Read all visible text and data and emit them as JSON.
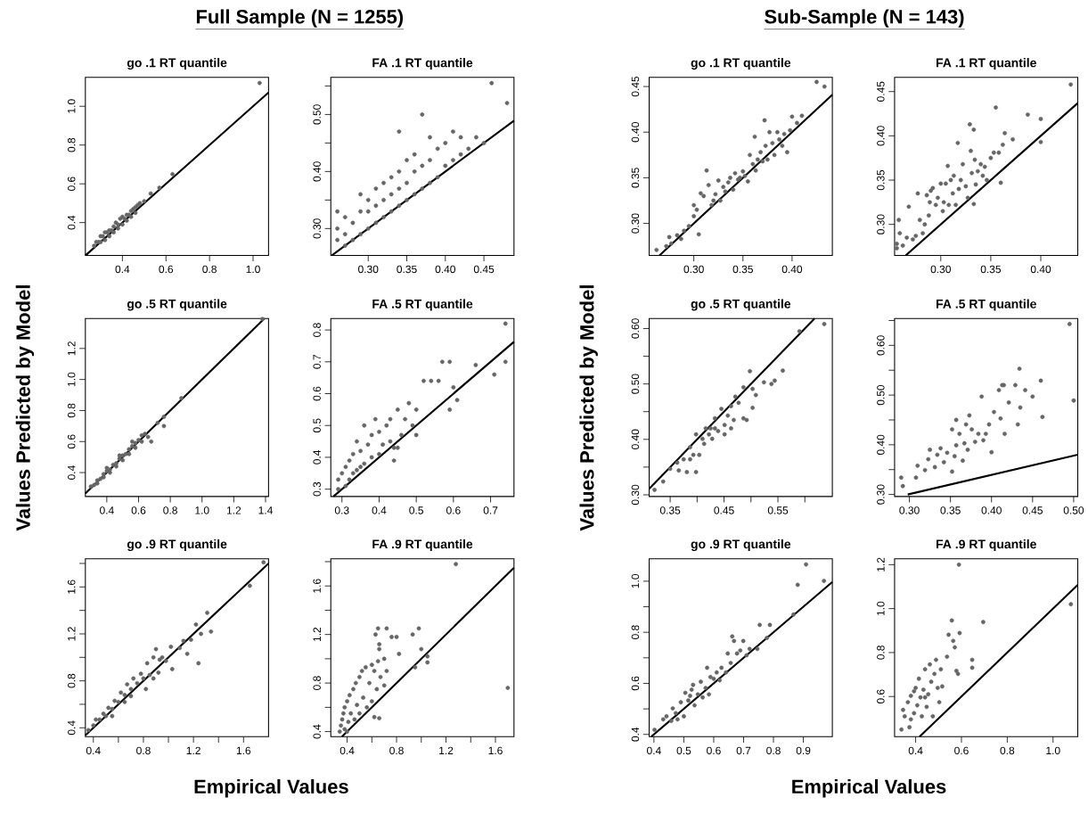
{
  "chart_data": [
    {
      "type": "other",
      "title": "Full Sample (N = 1255)",
      "xlabel": "Empirical Values",
      "ylabel": "Values Predicted by Model"
    },
    {
      "type": "scatter",
      "title": "go .1 RT quantile",
      "xlim": [
        0.23,
        1.071
      ],
      "ylim": [
        0.231,
        1.149
      ],
      "xticks": [
        0.4,
        0.6,
        0.8,
        {
          "value": 1.0,
          "label": "1.0"
        }
      ],
      "yticks": [
        0.4,
        0.6,
        0.8,
        {
          "value": 1.0,
          "label": "1.0"
        }
      ],
      "series": [
        {
          "marker": "circle",
          "color": "#666666",
          "x": [
            0.27,
            0.28,
            0.29,
            0.3,
            0.31,
            0.32,
            0.33,
            0.34,
            0.35,
            0.36,
            0.37,
            0.38,
            0.39,
            0.4,
            0.41,
            0.42,
            0.43,
            0.44,
            0.45,
            0.46,
            0.47,
            0.48,
            0.5,
            0.3,
            0.32,
            0.34,
            0.36,
            0.38,
            0.4,
            0.42,
            0.44,
            0.46,
            0.53,
            0.57,
            0.63,
            1.03
          ],
          "values": [
            0.28,
            0.3,
            0.3,
            0.33,
            0.33,
            0.35,
            0.35,
            0.36,
            0.36,
            0.38,
            0.4,
            0.39,
            0.42,
            0.43,
            0.42,
            0.44,
            0.44,
            0.46,
            0.47,
            0.48,
            0.49,
            0.5,
            0.51,
            0.3,
            0.31,
            0.33,
            0.35,
            0.37,
            0.39,
            0.41,
            0.43,
            0.45,
            0.55,
            0.58,
            0.65,
            1.12
          ]
        },
        {
          "type": "line",
          "marker": "none",
          "color": "#000000",
          "x": [
            0.231,
            1.071
          ],
          "values": [
            0.231,
            1.071
          ]
        }
      ]
    },
    {
      "type": "scatter",
      "title": "FA .1 RT quantile",
      "xlim": [
        0.2515,
        0.489
      ],
      "ylim": [
        0.253,
        0.565
      ],
      "xticks": [
        {
          "value": 0.3,
          "label": "0.30"
        },
        0.35,
        {
          "value": 0.4,
          "label": "0.40"
        },
        0.45
      ],
      "yticks": [
        {
          "value": 0.3,
          "label": "0.30"
        },
        {
          "value": 0.35,
          "label": null
        },
        {
          "value": 0.4,
          "label": "0.40"
        },
        {
          "value": 0.45,
          "label": null
        },
        {
          "value": 0.5,
          "label": "0.50"
        },
        {
          "value": 0.55,
          "label": null
        }
      ],
      "series": [
        {
          "marker": "circle",
          "color": "#666666",
          "x": [
            0.26,
            0.26,
            0.27,
            0.27,
            0.27,
            0.28,
            0.28,
            0.29,
            0.29,
            0.29,
            0.3,
            0.3,
            0.3,
            0.31,
            0.31,
            0.31,
            0.32,
            0.32,
            0.32,
            0.33,
            0.33,
            0.33,
            0.34,
            0.34,
            0.34,
            0.35,
            0.35,
            0.35,
            0.36,
            0.36,
            0.36,
            0.37,
            0.37,
            0.37,
            0.38,
            0.38,
            0.38,
            0.39,
            0.39,
            0.4,
            0.4,
            0.41,
            0.41,
            0.42,
            0.42,
            0.43,
            0.44,
            0.45,
            0.46,
            0.48,
            0.34,
            0.26
          ],
          "values": [
            0.28,
            0.3,
            0.27,
            0.29,
            0.32,
            0.28,
            0.31,
            0.29,
            0.33,
            0.36,
            0.3,
            0.33,
            0.35,
            0.31,
            0.34,
            0.37,
            0.32,
            0.35,
            0.38,
            0.33,
            0.36,
            0.39,
            0.34,
            0.37,
            0.4,
            0.35,
            0.38,
            0.42,
            0.36,
            0.4,
            0.43,
            0.37,
            0.41,
            0.5,
            0.38,
            0.42,
            0.46,
            0.39,
            0.44,
            0.41,
            0.45,
            0.42,
            0.47,
            0.43,
            0.46,
            0.44,
            0.46,
            0.45,
            0.555,
            0.52,
            0.47,
            0.33
          ]
        },
        {
          "type": "line",
          "marker": "none",
          "color": "#000000",
          "x": [
            0.253,
            0.489
          ],
          "values": [
            0.253,
            0.489
          ]
        }
      ]
    },
    {
      "type": "scatter",
      "title": "go .5 RT quantile",
      "xlim": [
        0.265,
        1.419
      ],
      "ylim": [
        0.246,
        1.393
      ],
      "xticks": [
        0.4,
        0.6,
        0.8,
        {
          "value": 1.0,
          "label": "1.0"
        },
        1.2,
        1.4
      ],
      "yticks": [
        0.4,
        0.6,
        0.8,
        {
          "value": 1.0,
          "label": "1.0"
        },
        1.2
      ],
      "series": [
        {
          "marker": "circle",
          "color": "#666666",
          "x": [
            0.3,
            0.32,
            0.34,
            0.36,
            0.38,
            0.4,
            0.42,
            0.44,
            0.46,
            0.48,
            0.5,
            0.52,
            0.54,
            0.56,
            0.58,
            0.6,
            0.62,
            0.64,
            0.34,
            0.38,
            0.42,
            0.46,
            0.5,
            0.54,
            0.58,
            0.62,
            0.4,
            0.48,
            0.56,
            0.66,
            0.68,
            0.72,
            0.76,
            0.76,
            0.87,
            1.38
          ],
          "values": [
            0.31,
            0.32,
            0.35,
            0.36,
            0.39,
            0.41,
            0.42,
            0.45,
            0.46,
            0.49,
            0.51,
            0.52,
            0.55,
            0.57,
            0.59,
            0.61,
            0.64,
            0.65,
            0.33,
            0.37,
            0.4,
            0.44,
            0.48,
            0.52,
            0.56,
            0.6,
            0.43,
            0.51,
            0.6,
            0.63,
            0.6,
            0.72,
            0.7,
            0.76,
            0.88,
            1.39
          ]
        },
        {
          "type": "line",
          "marker": "none",
          "color": "#000000",
          "x": [
            0.265,
            1.393
          ],
          "values": [
            0.265,
            1.393
          ]
        }
      ]
    },
    {
      "type": "scatter",
      "title": "FA .5 RT quantile",
      "xlim": [
        0.27,
        0.763
      ],
      "ylim": [
        0.277,
        0.836
      ],
      "xticks": [
        0.3,
        0.4,
        0.5,
        0.6,
        0.7
      ],
      "yticks": [
        0.3,
        0.4,
        0.5,
        0.6,
        0.7,
        0.8
      ],
      "series": [
        {
          "marker": "circle",
          "color": "#666666",
          "x": [
            0.29,
            0.29,
            0.3,
            0.31,
            0.31,
            0.32,
            0.32,
            0.33,
            0.33,
            0.34,
            0.34,
            0.35,
            0.35,
            0.36,
            0.36,
            0.37,
            0.38,
            0.38,
            0.39,
            0.4,
            0.4,
            0.41,
            0.42,
            0.43,
            0.43,
            0.44,
            0.45,
            0.46,
            0.47,
            0.48,
            0.49,
            0.5,
            0.5,
            0.52,
            0.54,
            0.56,
            0.57,
            0.59,
            0.6,
            0.61,
            0.59,
            0.66,
            0.71,
            0.74,
            0.74,
            0.44,
            0.45
          ],
          "values": [
            0.3,
            0.33,
            0.35,
            0.31,
            0.37,
            0.33,
            0.39,
            0.35,
            0.41,
            0.36,
            0.45,
            0.37,
            0.42,
            0.5,
            0.38,
            0.44,
            0.4,
            0.47,
            0.52,
            0.41,
            0.48,
            0.44,
            0.5,
            0.45,
            0.52,
            0.43,
            0.55,
            0.47,
            0.52,
            0.57,
            0.5,
            0.55,
            0.47,
            0.64,
            0.64,
            0.64,
            0.7,
            0.7,
            0.62,
            0.58,
            0.55,
            0.69,
            0.66,
            0.82,
            0.7,
            0.39,
            0.43
          ]
        },
        {
          "type": "line",
          "marker": "none",
          "color": "#000000",
          "x": [
            0.277,
            0.763
          ],
          "values": [
            0.277,
            0.763
          ]
        }
      ]
    },
    {
      "type": "scatter",
      "title": "go .9 RT quantile",
      "xlim": [
        0.336,
        1.8
      ],
      "ylim": [
        0.324,
        1.84
      ],
      "xticks": [
        0.4,
        {
          "value": 0.6,
          "label": null
        },
        0.8,
        {
          "value": 1.0,
          "label": null
        },
        1.2,
        {
          "value": 1.4,
          "label": null
        },
        1.6
      ],
      "yticks": [
        0.4,
        {
          "value": 0.6,
          "label": null
        },
        0.8,
        {
          "value": 1.0,
          "label": null
        },
        1.2,
        {
          "value": 1.4,
          "label": null
        },
        1.6,
        {
          "value": 1.8,
          "label": null
        }
      ],
      "series": [
        {
          "marker": "circle",
          "color": "#666666",
          "x": [
            0.36,
            0.4,
            0.42,
            0.45,
            0.48,
            0.5,
            0.52,
            0.55,
            0.57,
            0.6,
            0.62,
            0.65,
            0.67,
            0.7,
            0.72,
            0.75,
            0.78,
            0.8,
            0.83,
            0.85,
            0.88,
            0.9,
            0.93,
            0.95,
            0.98,
            0.82,
            0.88,
            0.92,
            1.03,
            1.02,
            1.09,
            1.12,
            1.15,
            1.18,
            1.22,
            1.24,
            1.26,
            1.31,
            1.34,
            1.65,
            1.76,
            0.55,
            0.65,
            0.7
          ],
          "values": [
            0.38,
            0.42,
            0.47,
            0.47,
            0.52,
            0.5,
            0.57,
            0.56,
            0.63,
            0.62,
            0.7,
            0.68,
            0.77,
            0.73,
            0.82,
            0.78,
            0.86,
            0.82,
            0.95,
            0.85,
            1.0,
            1.07,
            0.98,
            1.0,
            0.97,
            0.73,
            0.82,
            0.87,
            0.9,
            1.09,
            1.08,
            1.14,
            1.03,
            1.15,
            1.28,
            0.95,
            1.2,
            1.38,
            1.22,
            1.61,
            1.81,
            0.5,
            0.62,
            0.67
          ]
        },
        {
          "type": "line",
          "marker": "none",
          "color": "#000000",
          "x": [
            0.336,
            1.8
          ],
          "values": [
            0.336,
            1.8
          ]
        }
      ]
    },
    {
      "type": "scatter",
      "title": "FA .9 RT quantile",
      "xlim": [
        0.268,
        1.75
      ],
      "ylim": [
        0.358,
        1.824
      ],
      "xticks": [
        0.4,
        {
          "value": 0.6,
          "label": null
        },
        0.8,
        {
          "value": 1.0,
          "label": null
        },
        1.2,
        {
          "value": 1.4,
          "label": null
        },
        1.6
      ],
      "yticks": [
        0.4,
        {
          "value": 0.6,
          "label": null
        },
        0.8,
        {
          "value": 1.0,
          "label": null
        },
        1.2,
        {
          "value": 1.4,
          "label": null
        },
        1.6,
        {
          "value": 1.8,
          "label": null
        }
      ],
      "series": [
        {
          "marker": "circle",
          "color": "#666666",
          "x": [
            0.34,
            0.35,
            0.36,
            0.37,
            0.38,
            0.38,
            0.4,
            0.41,
            0.42,
            0.43,
            0.45,
            0.46,
            0.47,
            0.48,
            0.5,
            0.5,
            0.52,
            0.53,
            0.55,
            0.56,
            0.58,
            0.6,
            0.6,
            0.62,
            0.64,
            0.65,
            0.67,
            0.7,
            0.72,
            0.62,
            0.66,
            0.63,
            0.65,
            0.66,
            0.66,
            0.7,
            0.72,
            0.76,
            0.8,
            0.82,
            0.93,
            0.95,
            0.98,
            1.0,
            1.05,
            1.05,
            1.28,
            1.7,
            0.4
          ],
          "values": [
            0.4,
            0.45,
            0.5,
            0.55,
            0.6,
            0.42,
            0.65,
            0.48,
            0.7,
            0.55,
            0.75,
            0.5,
            0.8,
            0.62,
            0.85,
            0.55,
            0.9,
            0.68,
            0.93,
            0.6,
            0.8,
            0.95,
            0.65,
            0.9,
            0.75,
            0.98,
            0.85,
            0.78,
            0.9,
            0.52,
            0.51,
            1.2,
            1.25,
            1.12,
            1.08,
            1.0,
            1.25,
            1.18,
            1.18,
            1.04,
            1.2,
            0.93,
            1.25,
            1.08,
            1.02,
            0.97,
            1.78,
            0.76,
            0.4
          ]
        },
        {
          "type": "line",
          "marker": "none",
          "color": "#000000",
          "x": [
            0.358,
            1.75
          ],
          "values": [
            0.358,
            1.75
          ]
        }
      ]
    },
    {
      "type": "other",
      "title": "Sub-Sample (N = 143)",
      "xlabel": "Empirical Values",
      "ylabel": "Values Predicted by Model"
    },
    {
      "type": "scatter",
      "title": "go .1 RT quantile",
      "xlim": [
        0.2545,
        0.441
      ],
      "ylim": [
        0.265,
        0.46
      ],
      "xticks": [
        {
          "value": 0.3,
          "label": "0.30"
        },
        0.35,
        {
          "value": 0.4,
          "label": "0.40"
        }
      ],
      "yticks": [
        {
          "value": 0.3,
          "label": "0.30"
        },
        0.35,
        {
          "value": 0.4,
          "label": "0.40"
        },
        0.45
      ],
      "series": [
        {
          "marker": "circle",
          "color": "#666666",
          "x": [
            0.262,
            0.272,
            0.275,
            0.277,
            0.283,
            0.287,
            0.29,
            0.295,
            0.3,
            0.3,
            0.303,
            0.305,
            0.307,
            0.31,
            0.313,
            0.315,
            0.318,
            0.32,
            0.322,
            0.325,
            0.327,
            0.33,
            0.332,
            0.335,
            0.337,
            0.34,
            0.342,
            0.345,
            0.347,
            0.35,
            0.352,
            0.355,
            0.357,
            0.36,
            0.362,
            0.363,
            0.365,
            0.368,
            0.37,
            0.372,
            0.373,
            0.375,
            0.377,
            0.38,
            0.382,
            0.385,
            0.387,
            0.39,
            0.392,
            0.395,
            0.398,
            0.4,
            0.405,
            0.41,
            0.425,
            0.433
          ],
          "values": [
            0.271,
            0.275,
            0.285,
            0.278,
            0.287,
            0.283,
            0.292,
            0.297,
            0.308,
            0.32,
            0.315,
            0.288,
            0.333,
            0.33,
            0.358,
            0.342,
            0.32,
            0.325,
            0.332,
            0.347,
            0.325,
            0.34,
            0.335,
            0.345,
            0.35,
            0.337,
            0.355,
            0.348,
            0.35,
            0.357,
            0.352,
            0.346,
            0.375,
            0.365,
            0.395,
            0.358,
            0.37,
            0.378,
            0.368,
            0.413,
            0.385,
            0.37,
            0.4,
            0.388,
            0.375,
            0.4,
            0.392,
            0.385,
            0.398,
            0.378,
            0.402,
            0.417,
            0.41,
            0.418,
            0.455,
            0.45
          ]
        },
        {
          "type": "line",
          "marker": "none",
          "color": "#000000",
          "x": [
            0.265,
            0.441
          ],
          "values": [
            0.265,
            0.441
          ]
        }
      ]
    },
    {
      "type": "scatter",
      "title": "FA .1 RT quantile",
      "xlim": [
        0.2538,
        0.437
      ],
      "ylim": [
        0.265,
        0.466
      ],
      "xticks": [
        {
          "value": 0.3,
          "label": "0.30"
        },
        0.35,
        {
          "value": 0.4,
          "label": "0.40"
        }
      ],
      "yticks": [
        {
          "value": 0.3,
          "label": "0.30"
        },
        0.35,
        {
          "value": 0.4,
          "label": "0.40"
        },
        0.45
      ],
      "series": [
        {
          "marker": "circle",
          "color": "#666666",
          "x": [
            0.256,
            0.256,
            0.258,
            0.259,
            0.262,
            0.266,
            0.268,
            0.272,
            0.275,
            0.277,
            0.279,
            0.282,
            0.284,
            0.286,
            0.288,
            0.289,
            0.29,
            0.292,
            0.295,
            0.297,
            0.3,
            0.302,
            0.303,
            0.305,
            0.307,
            0.308,
            0.31,
            0.312,
            0.313,
            0.315,
            0.317,
            0.318,
            0.32,
            0.322,
            0.325,
            0.327,
            0.329,
            0.33,
            0.331,
            0.333,
            0.334,
            0.335,
            0.333,
            0.337,
            0.34,
            0.342,
            0.344,
            0.346,
            0.35,
            0.353,
            0.355,
            0.358,
            0.36,
            0.362,
            0.364,
            0.372,
            0.387,
            0.4,
            0.4,
            0.43
          ],
          "values": [
            0.273,
            0.278,
            0.305,
            0.29,
            0.276,
            0.285,
            0.32,
            0.283,
            0.287,
            0.335,
            0.305,
            0.29,
            0.3,
            0.333,
            0.31,
            0.325,
            0.338,
            0.341,
            0.322,
            0.33,
            0.346,
            0.315,
            0.325,
            0.346,
            0.366,
            0.322,
            0.35,
            0.335,
            0.355,
            0.322,
            0.392,
            0.34,
            0.35,
            0.368,
            0.343,
            0.33,
            0.413,
            0.383,
            0.358,
            0.407,
            0.373,
            0.345,
            0.323,
            0.36,
            0.368,
            0.355,
            0.365,
            0.35,
            0.375,
            0.381,
            0.432,
            0.381,
            0.347,
            0.39,
            0.403,
            0.396,
            0.424,
            0.419,
            0.393,
            0.458
          ]
        },
        {
          "type": "line",
          "marker": "none",
          "color": "#000000",
          "x": [
            0.265,
            0.437
          ],
          "values": [
            0.265,
            0.437
          ]
        }
      ]
    },
    {
      "type": "scatter",
      "title": "go .5 RT quantile",
      "xlim": [
        0.311,
        0.651
      ],
      "ylim": [
        0.297,
        0.618
      ],
      "xticks": [
        0.35,
        {
          "value": 0.4,
          "label": null
        },
        0.45,
        {
          "value": 0.5,
          "label": null
        },
        0.55,
        {
          "value": 0.6,
          "label": null
        }
      ],
      "yticks": [
        {
          "value": 0.3,
          "label": "0.30"
        },
        {
          "value": 0.35,
          "label": null
        },
        {
          "value": 0.4,
          "label": "0.40"
        },
        {
          "value": 0.45,
          "label": null
        },
        {
          "value": 0.5,
          "label": "0.50"
        },
        {
          "value": 0.55,
          "label": null
        },
        {
          "value": 0.6,
          "label": "0.60"
        }
      ],
      "series": [
        {
          "marker": "circle",
          "color": "#666666",
          "x": [
            0.321,
            0.337,
            0.35,
            0.363,
            0.366,
            0.375,
            0.381,
            0.387,
            0.398,
            0.398,
            0.404,
            0.41,
            0.413,
            0.416,
            0.425,
            0.428,
            0.433,
            0.439,
            0.445,
            0.451,
            0.457,
            0.463,
            0.471,
            0.477,
            0.486,
            0.492,
            0.486,
            0.498,
            0.503,
            0.503,
            0.509,
            0.524,
            0.538,
            0.544,
            0.559,
            0.59,
            0.636,
            0.387,
            0.393,
            0.422,
            0.433,
            0.451,
            0.468,
            0.463
          ],
          "values": [
            0.309,
            0.324,
            0.347,
            0.358,
            0.344,
            0.364,
            0.341,
            0.386,
            0.341,
            0.409,
            0.372,
            0.401,
            0.392,
            0.42,
            0.42,
            0.401,
            0.438,
            0.415,
            0.455,
            0.426,
            0.443,
            0.46,
            0.477,
            0.466,
            0.438,
            0.435,
            0.494,
            0.523,
            0.457,
            0.491,
            0.48,
            0.503,
            0.5,
            0.506,
            0.524,
            0.595,
            0.608,
            0.364,
            0.372,
            0.409,
            0.42,
            0.409,
            0.435,
            0.42
          ]
        },
        {
          "type": "line",
          "marker": "none",
          "color": "#000000",
          "x": [
            0.311,
            0.618
          ],
          "values": [
            0.311,
            0.618
          ]
        }
      ]
    },
    {
      "type": "scatter",
      "title": "FA .5 RT quantile",
      "xlim": [
        0.282,
        0.505
      ],
      "ylim": [
        0.296,
        0.654
      ],
      "xticks": [
        {
          "value": 0.3,
          "label": "0.30"
        },
        0.35,
        {
          "value": 0.4,
          "label": "0.40"
        },
        0.45,
        {
          "value": 0.5,
          "label": "0.50"
        }
      ],
      "yticks": [
        {
          "value": 0.3,
          "label": "0.30"
        },
        {
          "value": 0.35,
          "label": null
        },
        {
          "value": 0.4,
          "label": "0.40"
        },
        {
          "value": 0.45,
          "label": null
        },
        {
          "value": 0.5,
          "label": "0.50"
        },
        {
          "value": 0.55,
          "label": null
        },
        {
          "value": 0.6,
          "label": "0.60"
        },
        {
          "value": 0.65,
          "label": null
        }
      ],
      "series": [
        {
          "marker": "circle",
          "color": "#666666",
          "x": [
            0.29,
            0.292,
            0.308,
            0.31,
            0.319,
            0.323,
            0.325,
            0.331,
            0.334,
            0.338,
            0.342,
            0.346,
            0.352,
            0.352,
            0.355,
            0.357,
            0.361,
            0.365,
            0.367,
            0.371,
            0.373,
            0.376,
            0.38,
            0.384,
            0.388,
            0.39,
            0.393,
            0.397,
            0.4,
            0.403,
            0.409,
            0.411,
            0.413,
            0.416,
            0.415,
            0.421,
            0.429,
            0.432,
            0.434,
            0.435,
            0.441,
            0.45,
            0.46,
            0.462,
            0.495,
            0.5,
            0.357,
            0.369
          ],
          "values": [
            0.334,
            0.317,
            0.334,
            0.358,
            0.349,
            0.371,
            0.39,
            0.355,
            0.38,
            0.393,
            0.365,
            0.384,
            0.346,
            0.431,
            0.377,
            0.399,
            0.422,
            0.368,
            0.403,
            0.39,
            0.459,
            0.431,
            0.406,
            0.422,
            0.497,
            0.409,
            0.422,
            0.441,
            0.385,
            0.466,
            0.51,
            0.453,
            0.52,
            0.422,
            0.52,
            0.485,
            0.52,
            0.441,
            0.553,
            0.475,
            0.51,
            0.497,
            0.529,
            0.456,
            0.643,
            0.489,
            0.45,
            0.441
          ]
        },
        {
          "type": "line",
          "marker": "none",
          "color": "#000000",
          "x": [
            0.298,
            0.505
          ],
          "values": [
            0.3,
            0.38
          ]
        }
      ]
    },
    {
      "type": "scatter",
      "title": "go .9 RT quantile",
      "xlim": [
        0.384,
        0.997
      ],
      "ylim": [
        0.391,
        1.088
      ],
      "xticks": [
        0.4,
        0.5,
        0.6,
        0.7,
        0.8,
        0.9
      ],
      "yticks": [
        0.4,
        {
          "value": 0.5,
          "label": null
        },
        0.6,
        {
          "value": 0.7,
          "label": null
        },
        0.8,
        {
          "value": 0.9,
          "label": null
        },
        {
          "value": 1.0,
          "label": "1.0"
        }
      ],
      "series": [
        {
          "marker": "circle",
          "color": "#666666",
          "x": [
            0.402,
            0.431,
            0.442,
            0.458,
            0.463,
            0.473,
            0.479,
            0.49,
            0.5,
            0.505,
            0.515,
            0.521,
            0.531,
            0.536,
            0.547,
            0.557,
            0.563,
            0.573,
            0.578,
            0.584,
            0.6,
            0.61,
            0.62,
            0.626,
            0.641,
            0.647,
            0.662,
            0.668,
            0.678,
            0.689,
            0.699,
            0.71,
            0.72,
            0.746,
            0.754,
            0.788,
            0.778,
            0.867,
            0.881,
            0.909,
            0.969,
            0.589,
            0.526,
            0.657
          ],
          "values": [
            0.418,
            0.459,
            0.471,
            0.453,
            0.502,
            0.483,
            0.459,
            0.526,
            0.471,
            0.563,
            0.533,
            0.551,
            0.594,
            0.514,
            0.557,
            0.606,
            0.545,
            0.582,
            0.661,
            0.557,
            0.618,
            0.643,
            0.612,
            0.661,
            0.643,
            0.717,
            0.784,
            0.766,
            0.717,
            0.729,
            0.766,
            0.71,
            0.735,
            0.735,
            0.829,
            0.829,
            0.778,
            0.87,
            0.986,
            1.066,
            1.001,
            0.625,
            0.575,
            0.68
          ]
        },
        {
          "type": "line",
          "marker": "none",
          "color": "#000000",
          "x": [
            0.391,
            0.997
          ],
          "values": [
            0.391,
            0.997
          ]
        }
      ]
    },
    {
      "type": "scatter",
      "title": "FA .9 RT quantile",
      "xlim": [
        0.308,
        1.108
      ],
      "ylim": [
        0.417,
        1.227
      ],
      "xticks": [
        0.4,
        0.6,
        0.8,
        {
          "value": 1.0,
          "label": "1.0"
        }
      ],
      "yticks": [
        0.6,
        0.8,
        {
          "value": 1.0,
          "label": "1.0"
        },
        1.2
      ],
      "series": [
        {
          "marker": "circle",
          "color": "#666666",
          "x": [
            0.338,
            0.345,
            0.352,
            0.366,
            0.373,
            0.379,
            0.379,
            0.393,
            0.4,
            0.407,
            0.414,
            0.421,
            0.427,
            0.434,
            0.441,
            0.448,
            0.455,
            0.462,
            0.468,
            0.475,
            0.482,
            0.489,
            0.496,
            0.503,
            0.51,
            0.516,
            0.537,
            0.544,
            0.558,
            0.564,
            0.571,
            0.578,
            0.585,
            0.589,
            0.592,
            0.647,
            0.647,
            0.695,
            1.078,
            0.441,
            0.393
          ],
          "values": [
            0.45,
            0.539,
            0.51,
            0.574,
            0.46,
            0.496,
            0.603,
            0.524,
            0.639,
            0.56,
            0.681,
            0.596,
            0.51,
            0.631,
            0.724,
            0.553,
            0.61,
            0.746,
            0.667,
            0.51,
            0.703,
            0.767,
            0.639,
            0.574,
            0.724,
            0.646,
            0.781,
            0.881,
            0.946,
            0.853,
            0.824,
            0.717,
            0.703,
            1.2,
            0.889,
            0.767,
            0.731,
            0.939,
            1.02,
            0.596,
            0.624
          ]
        },
        {
          "type": "line",
          "marker": "none",
          "color": "#000000",
          "x": [
            0.417,
            1.108
          ],
          "values": [
            0.417,
            1.108
          ]
        }
      ]
    }
  ]
}
